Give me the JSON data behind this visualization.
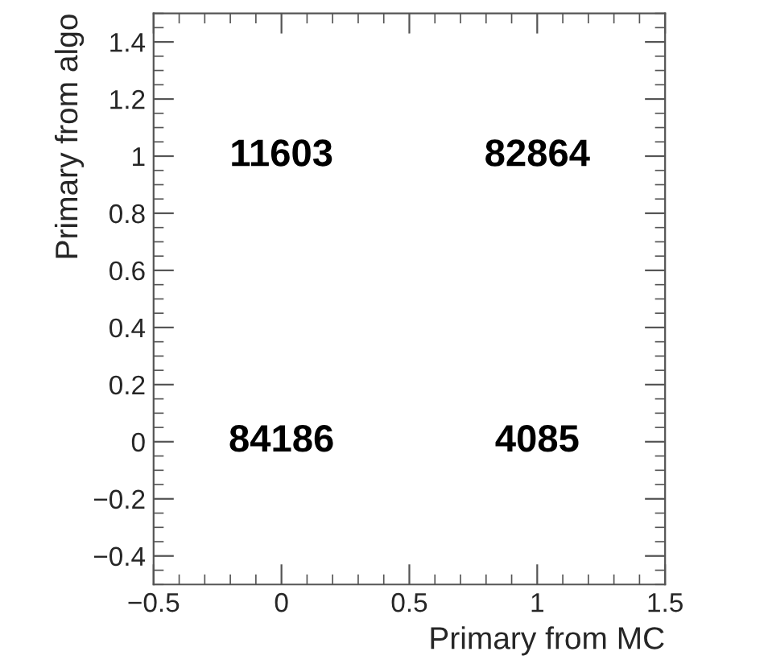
{
  "chart_data": {
    "type": "heatmap",
    "xlabel": "Primary from MC",
    "ylabel": "Primary from algo",
    "x": [
      0,
      1
    ],
    "y": [
      1,
      0
    ],
    "cells": [
      [
        11603,
        82864
      ],
      [
        84186,
        4085
      ]
    ],
    "data_labels": true,
    "xlim": [
      -0.5,
      1.5
    ],
    "ylim": [
      -0.5,
      1.5
    ],
    "xticks": [
      {
        "value": -0.5,
        "label": "−0.5"
      },
      0,
      0.5,
      1,
      1.5
    ],
    "yticks": [
      {
        "value": -0.4,
        "label": "−0.4"
      },
      {
        "value": -0.2,
        "label": "−0.2"
      },
      0,
      0.2,
      0.4,
      0.6,
      0.8,
      1,
      1.2,
      1.4
    ]
  }
}
